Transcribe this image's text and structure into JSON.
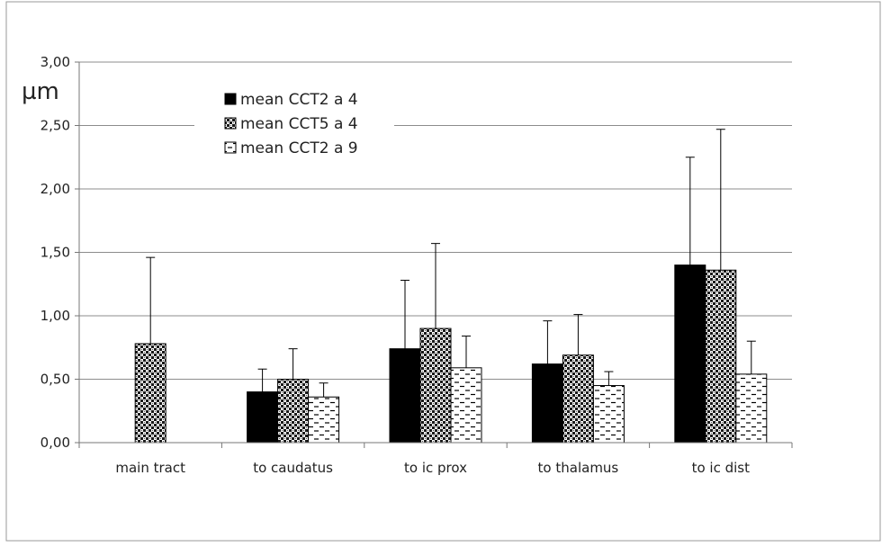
{
  "chart_data": {
    "type": "bar",
    "ylabel": "µm",
    "ylim": [
      0,
      3
    ],
    "yticks": [
      "0,00",
      "0,50",
      "1,00",
      "1,50",
      "2,00",
      "2,50",
      "3,00"
    ],
    "grid": true,
    "legend_position": "top-left-inside",
    "categories": [
      "main tract",
      "to caudatus",
      "to ic prox",
      "to thalamus",
      "to ic dist"
    ],
    "series": [
      {
        "name": "mean CCT2 a 4",
        "pattern": "solid-black",
        "values": [
          null,
          0.4,
          0.74,
          0.62,
          1.4
        ],
        "error": [
          null,
          0.18,
          0.54,
          0.34,
          0.85
        ]
      },
      {
        "name": "mean CCT5 a 4",
        "pattern": "checker",
        "values": [
          0.78,
          0.5,
          0.9,
          0.69,
          1.36
        ],
        "error": [
          0.68,
          0.24,
          0.67,
          0.32,
          1.11
        ]
      },
      {
        "name": "mean CCT2 a 9",
        "pattern": "dashes",
        "values": [
          null,
          0.36,
          0.59,
          0.45,
          0.54
        ],
        "error": [
          null,
          0.11,
          0.25,
          0.11,
          0.26
        ]
      }
    ],
    "colors": {
      "grid": "#8c8c8c",
      "bar_outline": "#000000",
      "error_bar": "#000000"
    }
  }
}
